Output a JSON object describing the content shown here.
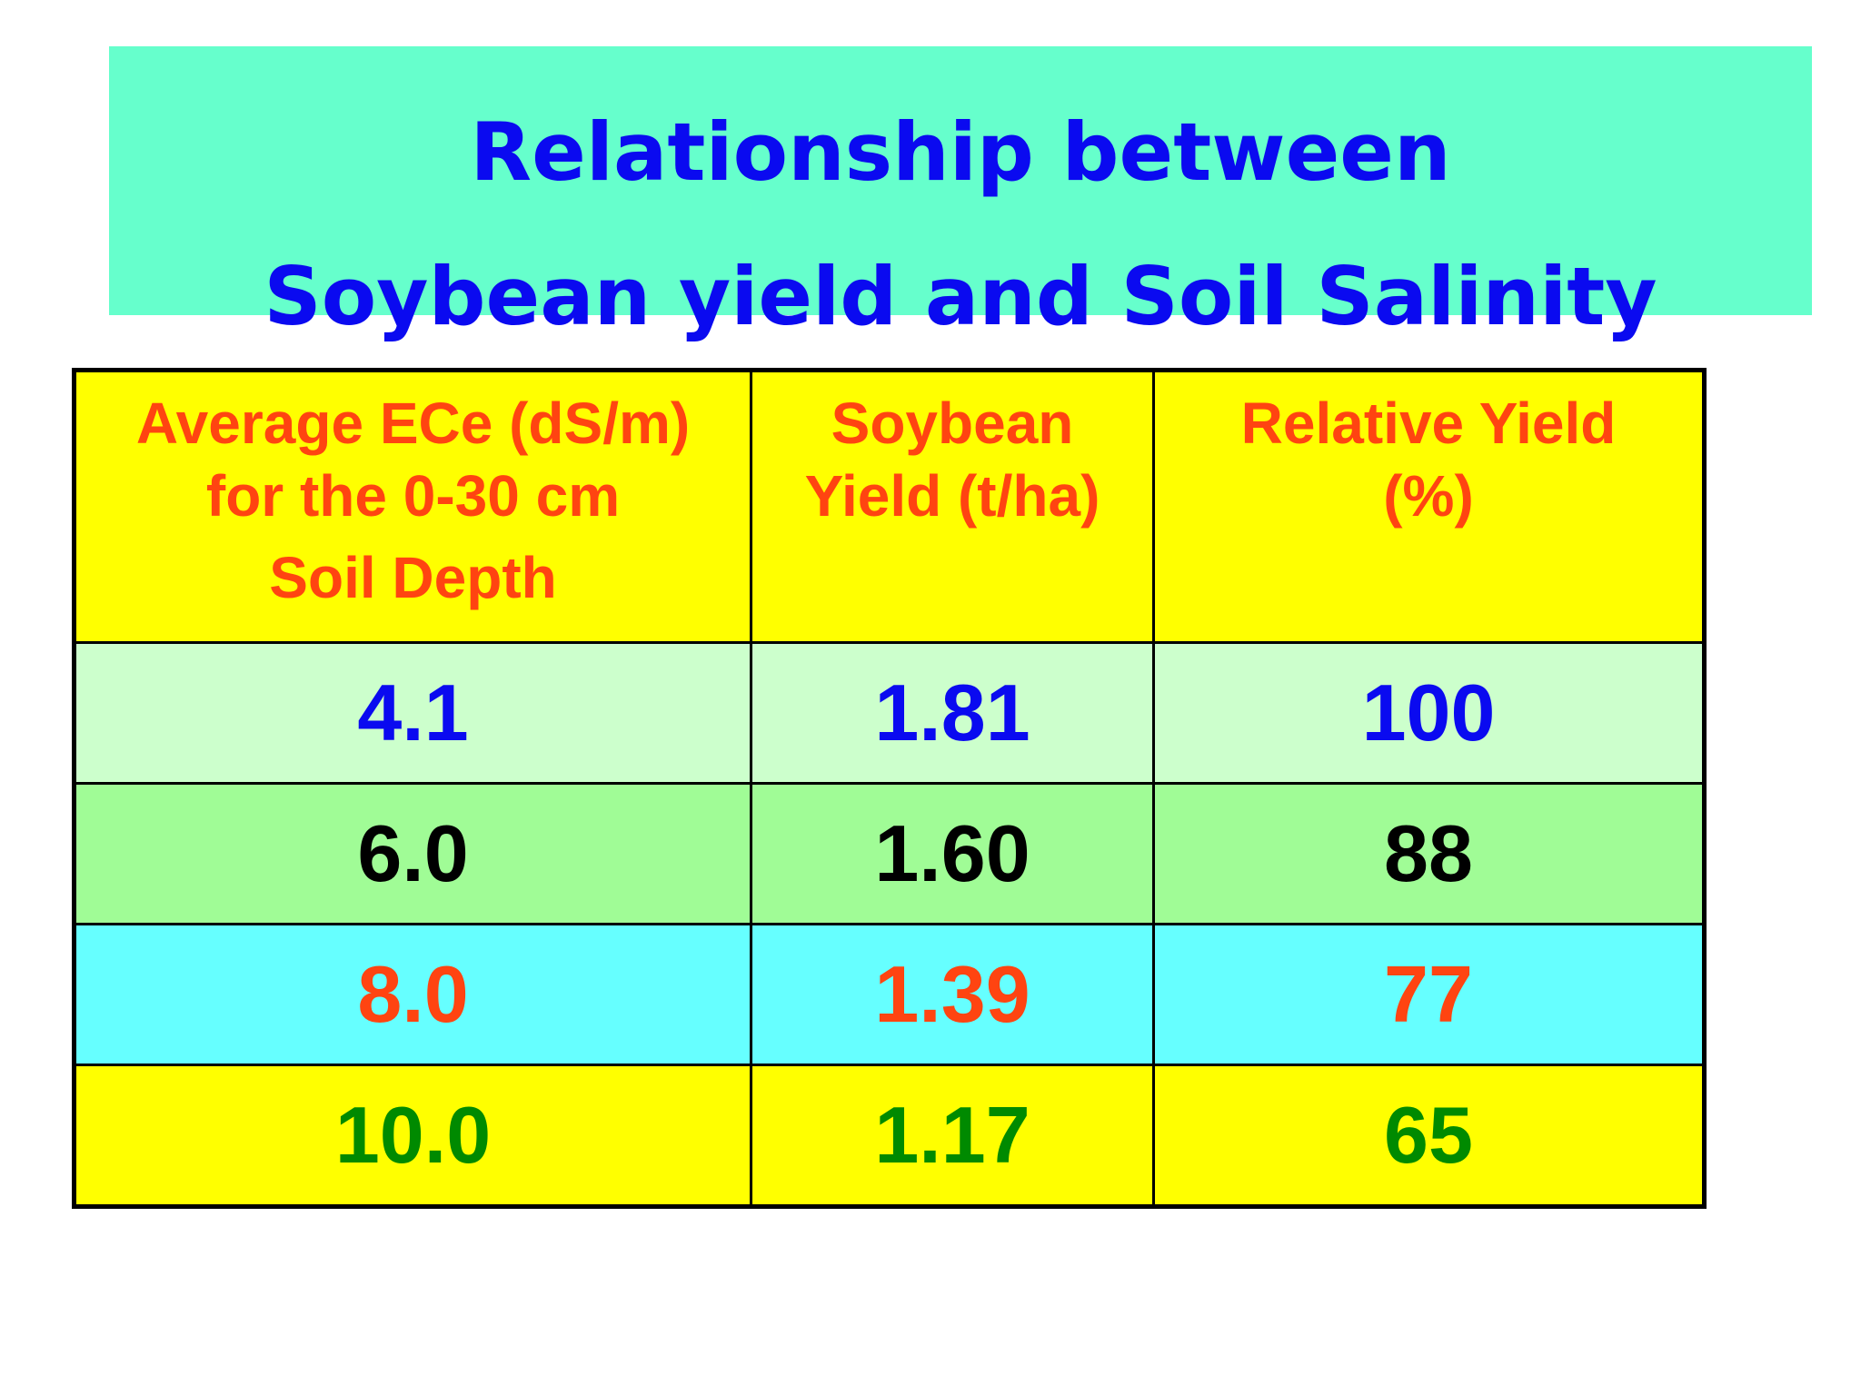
{
  "title": {
    "line1": "Relationship between",
    "line2": "Soybean yield and Soil Salinity",
    "color": "#0A0AF0",
    "background": "#66FFCC"
  },
  "chart_data": {
    "type": "table",
    "columns": [
      {
        "lines": [
          "Average ECe (dS/m)",
          "for the 0-30 cm",
          "Soil Depth"
        ]
      },
      {
        "lines": [
          "Soybean",
          "Yield (t/ha)"
        ]
      },
      {
        "lines": [
          "Relative Yield",
          "(%)"
        ]
      }
    ],
    "header_style": {
      "background": "#FFFF00",
      "text_color": "#FF4411"
    },
    "rows": [
      {
        "values": [
          "4.1",
          "1.81",
          "100"
        ],
        "background": "#CCFFCC",
        "text_color": "#0A0AF0"
      },
      {
        "values": [
          "6.0",
          "1.60",
          "88"
        ],
        "background": "#A0FC96",
        "text_color": "#000000"
      },
      {
        "values": [
          "8.0",
          "1.39",
          "77"
        ],
        "background": "#66FFFF",
        "text_color": "#FF4411"
      },
      {
        "values": [
          "10.0",
          "1.17",
          "65"
        ],
        "background": "#FFFF00",
        "text_color": "#008A00"
      }
    ]
  }
}
